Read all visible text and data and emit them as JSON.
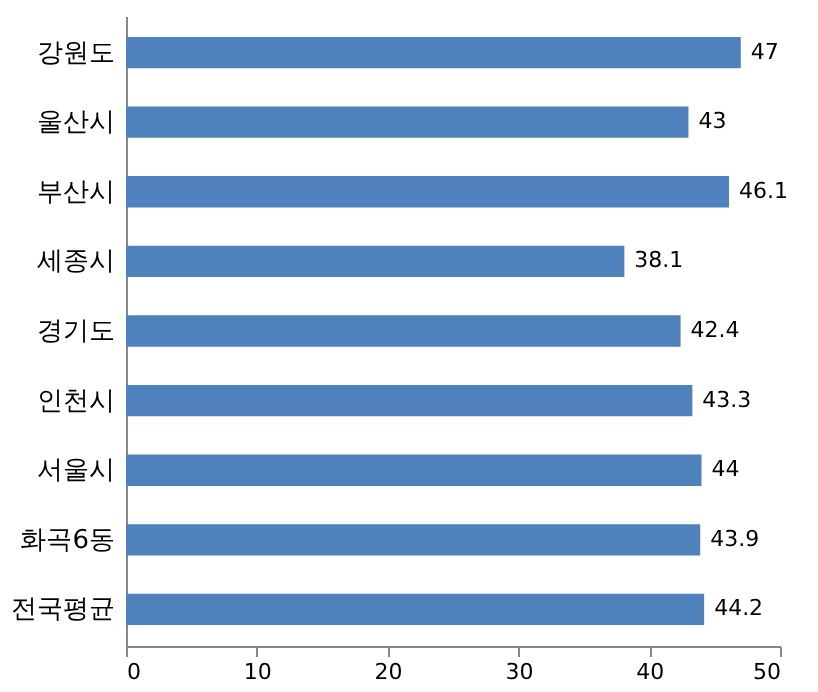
{
  "chart_data": {
    "type": "bar",
    "orientation": "horizontal",
    "categories": [
      "강원도",
      "울산시",
      "부산시",
      "세종시",
      "경기도",
      "인천시",
      "서울시",
      "화곡6동",
      "전국평균"
    ],
    "values": [
      47,
      43,
      46.1,
      38.1,
      42.4,
      43.3,
      44,
      43.9,
      44.2
    ],
    "color": "#4f81bd",
    "xlim": [
      0,
      50
    ],
    "xticks": [
      0,
      10,
      20,
      30,
      40,
      50
    ],
    "grid": false,
    "data_labels": true
  }
}
